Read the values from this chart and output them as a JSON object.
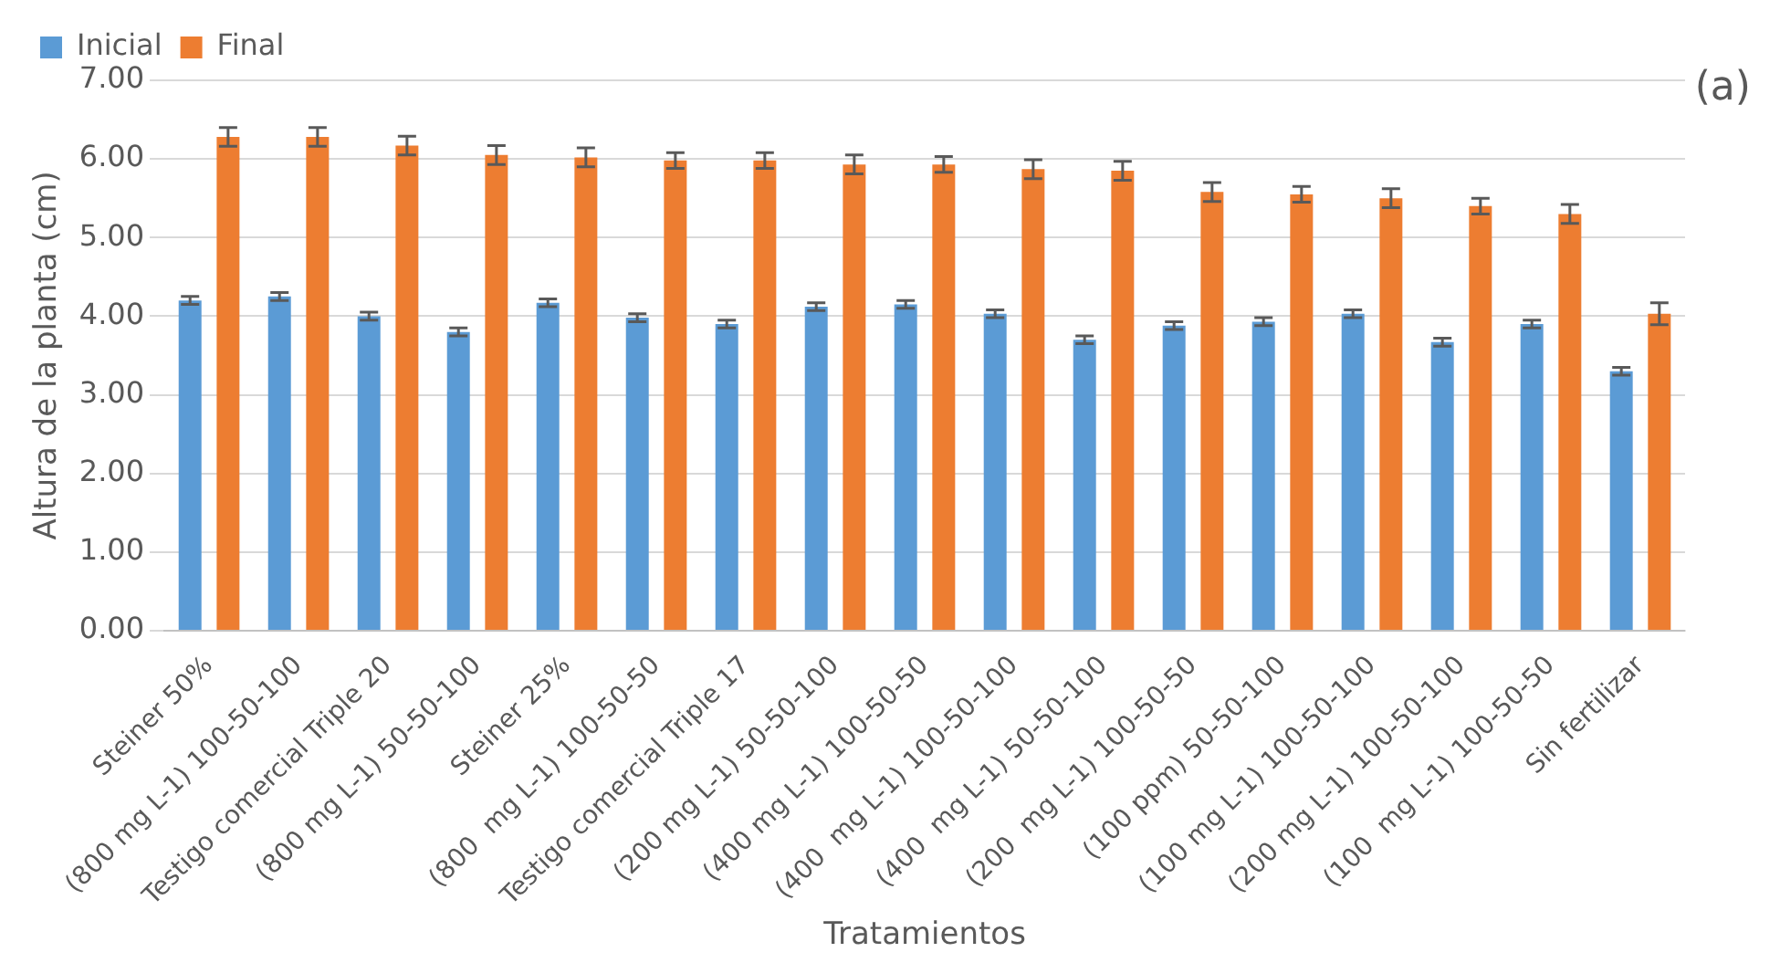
{
  "chart_data": {
    "type": "bar",
    "xlabel": "Tratamientos",
    "ylabel": "Altura de la planta (cm)",
    "categories": [
      "Steiner 50%",
      "(800 mg L-1) 100-50-100",
      "Testigo comercial Triple 20",
      "(800 mg L-1) 50-50-100",
      "Steiner 25%",
      "(800  mg L-1) 100-50-50",
      "Testigo comercial Triple 17",
      "(200 mg L-1) 50-50-100",
      "(400 mg L-1) 100-50-50",
      "(400  mg L-1) 100-50-100",
      "(400  mg L-1) 50-50-100",
      "(200  mg L-1) 100-50-50",
      "(100 ppm) 50-50-100",
      "(100 mg L-1) 100-50-100",
      "(200 mg L-1) 100-50-100",
      "(100  mg L-1) 100-50-50",
      "Sin fertilizar"
    ],
    "series": [
      {
        "name": "Inicial",
        "color": "#5b9bd5",
        "values": [
          4.2,
          4.25,
          4.0,
          3.8,
          4.17,
          3.98,
          3.9,
          4.12,
          4.15,
          4.03,
          3.7,
          3.88,
          3.93,
          4.03,
          3.67,
          3.9,
          3.3
        ],
        "errors": [
          0.05,
          0.05,
          0.05,
          0.05,
          0.05,
          0.05,
          0.05,
          0.05,
          0.05,
          0.05,
          0.05,
          0.05,
          0.05,
          0.05,
          0.05,
          0.05,
          0.05
        ]
      },
      {
        "name": "Final",
        "color": "#ed7d31",
        "values": [
          6.28,
          6.28,
          6.17,
          6.05,
          6.02,
          5.98,
          5.98,
          5.93,
          5.93,
          5.87,
          5.85,
          5.58,
          5.55,
          5.5,
          5.4,
          5.3,
          4.03
        ],
        "errors": [
          0.12,
          0.12,
          0.12,
          0.12,
          0.12,
          0.1,
          0.1,
          0.12,
          0.1,
          0.12,
          0.12,
          0.12,
          0.1,
          0.12,
          0.1,
          0.12,
          0.14
        ]
      }
    ],
    "ylim": [
      0,
      7
    ],
    "yticks": [
      {
        "value": 0,
        "label": "0.00"
      },
      {
        "value": 1,
        "label": "1.00"
      },
      {
        "value": 2,
        "label": "2.00"
      },
      {
        "value": 3,
        "label": "3.00"
      },
      {
        "value": 4,
        "label": "4.00"
      },
      {
        "value": 5,
        "label": "5.00"
      },
      {
        "value": 6,
        "label": "6.00"
      },
      {
        "value": 7,
        "label": "7.00"
      }
    ],
    "grid": "y",
    "legend": "top",
    "annotations": [
      "(a)"
    ]
  }
}
